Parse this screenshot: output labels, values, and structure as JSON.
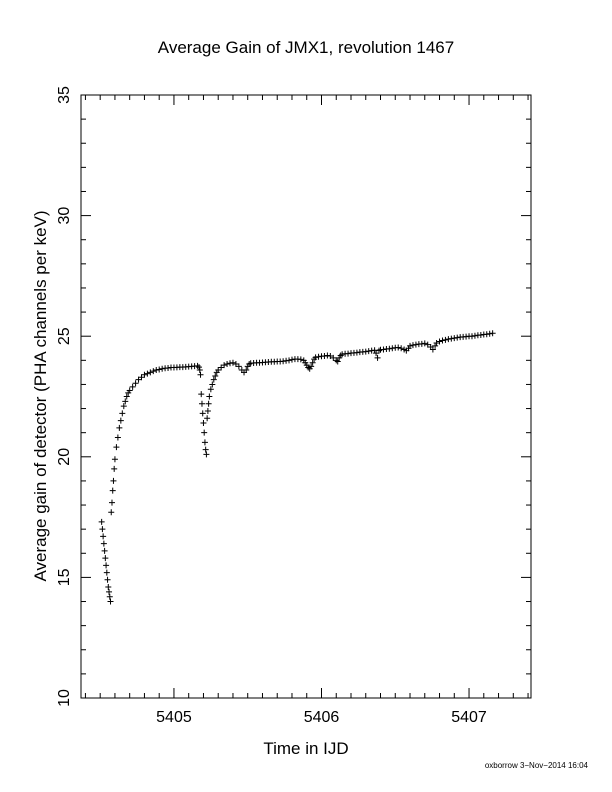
{
  "chart_data": {
    "type": "scatter",
    "title": "Average Gain of JMX1, revolution 1467",
    "xlabel": "Time in IJD",
    "ylabel": "Average gain of detector (PHA channels per keV)",
    "xlim": [
      5404.37,
      5407.42
    ],
    "ylim": [
      10,
      35
    ],
    "xticks": [
      5405,
      5406,
      5407
    ],
    "yticks": [
      10,
      15,
      20,
      25,
      30,
      35
    ],
    "marker": "plus",
    "grid": false,
    "legend": "none",
    "series": [
      {
        "points": [
          [
            5404.51,
            17.3
          ],
          [
            5404.515,
            17.0
          ],
          [
            5404.52,
            16.7
          ],
          [
            5404.525,
            16.4
          ],
          [
            5404.53,
            16.1
          ],
          [
            5404.535,
            15.8
          ],
          [
            5404.54,
            15.5
          ],
          [
            5404.545,
            15.2
          ],
          [
            5404.55,
            14.9
          ],
          [
            5404.555,
            14.6
          ],
          [
            5404.56,
            14.4
          ],
          [
            5404.565,
            14.2
          ],
          [
            5404.57,
            14.0
          ],
          [
            5404.575,
            17.7
          ],
          [
            5404.58,
            18.1
          ],
          [
            5404.585,
            18.6
          ],
          [
            5404.59,
            19.0
          ],
          [
            5404.595,
            19.5
          ],
          [
            5404.6,
            19.9
          ],
          [
            5404.61,
            20.4
          ],
          [
            5404.62,
            20.8
          ],
          [
            5404.63,
            21.2
          ],
          [
            5404.64,
            21.5
          ],
          [
            5404.65,
            21.8
          ],
          [
            5404.66,
            22.1
          ],
          [
            5404.67,
            22.3
          ],
          [
            5404.68,
            22.5
          ],
          [
            5404.69,
            22.65
          ],
          [
            5404.7,
            22.75
          ],
          [
            5404.72,
            22.9
          ],
          [
            5404.74,
            23.05
          ],
          [
            5404.76,
            23.2
          ],
          [
            5404.78,
            23.3
          ],
          [
            5404.8,
            23.4
          ],
          [
            5404.82,
            23.45
          ],
          [
            5404.84,
            23.5
          ],
          [
            5404.86,
            23.55
          ],
          [
            5404.88,
            23.6
          ],
          [
            5404.9,
            23.62
          ],
          [
            5404.92,
            23.65
          ],
          [
            5404.94,
            23.67
          ],
          [
            5404.96,
            23.68
          ],
          [
            5404.98,
            23.7
          ],
          [
            5405.0,
            23.7
          ],
          [
            5405.02,
            23.71
          ],
          [
            5405.04,
            23.72
          ],
          [
            5405.06,
            23.72
          ],
          [
            5405.08,
            23.73
          ],
          [
            5405.1,
            23.74
          ],
          [
            5405.12,
            23.75
          ],
          [
            5405.14,
            23.76
          ],
          [
            5405.16,
            23.77
          ],
          [
            5405.17,
            23.72
          ],
          [
            5405.175,
            23.6
          ],
          [
            5405.18,
            23.4
          ],
          [
            5405.185,
            22.6
          ],
          [
            5405.19,
            22.2
          ],
          [
            5405.195,
            21.8
          ],
          [
            5405.2,
            21.4
          ],
          [
            5405.205,
            21.0
          ],
          [
            5405.21,
            20.6
          ],
          [
            5405.215,
            20.3
          ],
          [
            5405.22,
            20.1
          ],
          [
            5405.225,
            21.6
          ],
          [
            5405.23,
            21.9
          ],
          [
            5405.235,
            22.2
          ],
          [
            5405.24,
            22.5
          ],
          [
            5405.25,
            22.8
          ],
          [
            5405.26,
            23.0
          ],
          [
            5405.27,
            23.2
          ],
          [
            5405.28,
            23.35
          ],
          [
            5405.29,
            23.5
          ],
          [
            5405.3,
            23.6
          ],
          [
            5405.32,
            23.7
          ],
          [
            5405.34,
            23.8
          ],
          [
            5405.36,
            23.85
          ],
          [
            5405.38,
            23.88
          ],
          [
            5405.4,
            23.9
          ],
          [
            5405.42,
            23.85
          ],
          [
            5405.44,
            23.75
          ],
          [
            5405.46,
            23.6
          ],
          [
            5405.475,
            23.5
          ],
          [
            5405.49,
            23.6
          ],
          [
            5405.5,
            23.75
          ],
          [
            5405.51,
            23.85
          ],
          [
            5405.52,
            23.88
          ],
          [
            5405.54,
            23.89
          ],
          [
            5405.56,
            23.9
          ],
          [
            5405.58,
            23.9
          ],
          [
            5405.6,
            23.91
          ],
          [
            5405.62,
            23.92
          ],
          [
            5405.64,
            23.93
          ],
          [
            5405.66,
            23.94
          ],
          [
            5405.68,
            23.94
          ],
          [
            5405.7,
            23.95
          ],
          [
            5405.72,
            23.95
          ],
          [
            5405.74,
            23.96
          ],
          [
            5405.76,
            23.98
          ],
          [
            5405.78,
            24.0
          ],
          [
            5405.8,
            24.03
          ],
          [
            5405.82,
            24.05
          ],
          [
            5405.84,
            24.05
          ],
          [
            5405.86,
            24.04
          ],
          [
            5405.88,
            24.0
          ],
          [
            5405.89,
            23.9
          ],
          [
            5405.9,
            23.8
          ],
          [
            5405.91,
            23.7
          ],
          [
            5405.92,
            23.65
          ],
          [
            5405.93,
            23.75
          ],
          [
            5405.94,
            23.9
          ],
          [
            5405.95,
            24.05
          ],
          [
            5405.96,
            24.12
          ],
          [
            5405.98,
            24.15
          ],
          [
            5406.0,
            24.17
          ],
          [
            5406.02,
            24.18
          ],
          [
            5406.04,
            24.2
          ],
          [
            5406.06,
            24.18
          ],
          [
            5406.08,
            24.1
          ],
          [
            5406.1,
            24.0
          ],
          [
            5406.11,
            23.95
          ],
          [
            5406.12,
            24.1
          ],
          [
            5406.13,
            24.2
          ],
          [
            5406.14,
            24.25
          ],
          [
            5406.16,
            24.27
          ],
          [
            5406.18,
            24.28
          ],
          [
            5406.2,
            24.3
          ],
          [
            5406.22,
            24.31
          ],
          [
            5406.24,
            24.32
          ],
          [
            5406.26,
            24.34
          ],
          [
            5406.28,
            24.35
          ],
          [
            5406.3,
            24.36
          ],
          [
            5406.32,
            24.38
          ],
          [
            5406.34,
            24.4
          ],
          [
            5406.36,
            24.42
          ],
          [
            5406.37,
            24.3
          ],
          [
            5406.38,
            24.1
          ],
          [
            5406.39,
            24.4
          ],
          [
            5406.4,
            24.44
          ],
          [
            5406.42,
            24.45
          ],
          [
            5406.44,
            24.47
          ],
          [
            5406.46,
            24.48
          ],
          [
            5406.48,
            24.5
          ],
          [
            5406.5,
            24.52
          ],
          [
            5406.52,
            24.53
          ],
          [
            5406.54,
            24.5
          ],
          [
            5406.56,
            24.45
          ],
          [
            5406.575,
            24.4
          ],
          [
            5406.59,
            24.5
          ],
          [
            5406.6,
            24.6
          ],
          [
            5406.62,
            24.63
          ],
          [
            5406.64,
            24.65
          ],
          [
            5406.66,
            24.67
          ],
          [
            5406.68,
            24.68
          ],
          [
            5406.7,
            24.7
          ],
          [
            5406.72,
            24.65
          ],
          [
            5406.74,
            24.55
          ],
          [
            5406.755,
            24.45
          ],
          [
            5406.77,
            24.6
          ],
          [
            5406.78,
            24.72
          ],
          [
            5406.8,
            24.78
          ],
          [
            5406.82,
            24.82
          ],
          [
            5406.84,
            24.85
          ],
          [
            5406.86,
            24.88
          ],
          [
            5406.88,
            24.9
          ],
          [
            5406.9,
            24.92
          ],
          [
            5406.92,
            24.94
          ],
          [
            5406.94,
            24.96
          ],
          [
            5406.96,
            24.97
          ],
          [
            5406.98,
            24.98
          ],
          [
            5407.0,
            25.0
          ],
          [
            5407.02,
            25.0
          ],
          [
            5407.04,
            25.02
          ],
          [
            5407.06,
            25.04
          ],
          [
            5407.08,
            25.05
          ],
          [
            5407.1,
            25.07
          ],
          [
            5407.12,
            25.08
          ],
          [
            5407.14,
            25.1
          ],
          [
            5407.16,
            25.12
          ]
        ]
      }
    ]
  },
  "footer": {
    "signature": "oxborrow  3−Nov−2014 16:04"
  }
}
